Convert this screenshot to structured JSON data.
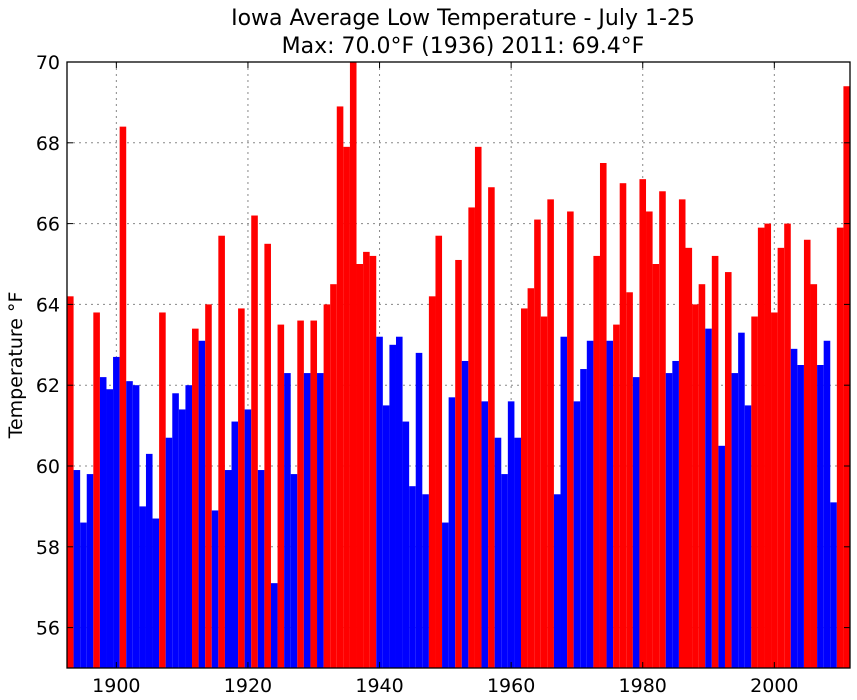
{
  "chart_data": {
    "type": "bar",
    "title": "Iowa Average Low Temperature - July 1-25",
    "subtitle": "Max: 70.0°F (1936) 2011: 69.4°F",
    "xlabel": "",
    "ylabel": "Temperature °F",
    "xlim": [
      1892.5,
      2011.5
    ],
    "ylim": [
      55,
      70
    ],
    "x_ticks": [
      "1900",
      "1920",
      "1940",
      "1960",
      "1980",
      "2000"
    ],
    "y_ticks": [
      "56",
      "58",
      "60",
      "62",
      "64",
      "66",
      "68",
      "70"
    ],
    "grid": true,
    "colors": {
      "above_average": "#ff0000",
      "below_average": "#0000ff",
      "grid": "#888888"
    },
    "x": [
      1893,
      1894,
      1895,
      1896,
      1897,
      1898,
      1899,
      1900,
      1901,
      1902,
      1903,
      1904,
      1905,
      1906,
      1907,
      1908,
      1909,
      1910,
      1911,
      1912,
      1913,
      1914,
      1915,
      1916,
      1917,
      1918,
      1919,
      1920,
      1921,
      1922,
      1923,
      1924,
      1925,
      1926,
      1927,
      1928,
      1929,
      1930,
      1931,
      1932,
      1933,
      1934,
      1935,
      1936,
      1937,
      1938,
      1939,
      1940,
      1941,
      1942,
      1943,
      1944,
      1945,
      1946,
      1947,
      1948,
      1949,
      1950,
      1951,
      1952,
      1953,
      1954,
      1955,
      1956,
      1957,
      1958,
      1959,
      1960,
      1961,
      1962,
      1963,
      1964,
      1965,
      1966,
      1967,
      1968,
      1969,
      1970,
      1971,
      1972,
      1973,
      1974,
      1975,
      1976,
      1977,
      1978,
      1979,
      1980,
      1981,
      1982,
      1983,
      1984,
      1985,
      1986,
      1987,
      1988,
      1989,
      1990,
      1991,
      1992,
      1993,
      1994,
      1995,
      1996,
      1997,
      1998,
      1999,
      2000,
      2001,
      2002,
      2003,
      2004,
      2005,
      2006,
      2007,
      2008,
      2009,
      2010,
      2011
    ],
    "values": [
      64.2,
      59.9,
      58.6,
      59.8,
      63.8,
      62.2,
      61.9,
      62.7,
      68.4,
      62.1,
      62.0,
      59.0,
      60.3,
      58.7,
      63.8,
      60.7,
      61.8,
      61.4,
      62.0,
      63.4,
      63.1,
      64.0,
      58.9,
      65.7,
      59.9,
      61.1,
      63.9,
      61.4,
      66.2,
      59.9,
      65.5,
      57.1,
      63.5,
      62.3,
      59.8,
      63.6,
      62.3,
      63.6,
      62.3,
      64.0,
      64.5,
      68.9,
      67.9,
      70.0,
      65.0,
      65.3,
      65.2,
      63.2,
      61.5,
      63.0,
      63.2,
      61.1,
      59.5,
      62.8,
      59.3,
      64.2,
      65.7,
      58.6,
      61.7,
      65.1,
      62.6,
      66.4,
      67.9,
      61.6,
      66.9,
      60.7,
      59.8,
      61.6,
      60.7,
      63.9,
      64.4,
      66.1,
      63.7,
      66.6,
      59.3,
      63.2,
      66.3,
      61.6,
      62.4,
      63.1,
      65.2,
      67.5,
      63.1,
      63.5,
      67.0,
      64.3,
      62.2,
      67.1,
      66.3,
      65.0,
      66.8,
      62.3,
      62.6,
      66.6,
      65.4,
      64.0,
      64.5,
      63.4,
      65.2,
      60.5,
      64.8,
      62.3,
      63.3,
      61.5,
      63.7,
      65.9,
      66.0,
      63.8,
      65.4,
      66.0,
      62.9,
      62.5,
      65.6,
      64.5,
      62.5,
      63.1,
      59.1,
      65.9,
      69.4
    ],
    "above": [
      1,
      0,
      0,
      0,
      1,
      0,
      0,
      0,
      1,
      0,
      0,
      0,
      0,
      0,
      1,
      0,
      0,
      0,
      0,
      1,
      0,
      1,
      0,
      1,
      0,
      0,
      1,
      0,
      1,
      0,
      1,
      0,
      1,
      0,
      0,
      1,
      0,
      1,
      0,
      1,
      1,
      1,
      1,
      1,
      1,
      1,
      1,
      0,
      0,
      0,
      0,
      0,
      0,
      0,
      0,
      1,
      1,
      0,
      0,
      1,
      0,
      1,
      1,
      0,
      1,
      0,
      0,
      0,
      0,
      1,
      1,
      1,
      1,
      1,
      0,
      0,
      1,
      0,
      0,
      0,
      1,
      1,
      0,
      1,
      1,
      1,
      0,
      1,
      1,
      1,
      1,
      0,
      0,
      1,
      1,
      1,
      1,
      0,
      1,
      0,
      1,
      0,
      0,
      0,
      1,
      1,
      1,
      1,
      1,
      1,
      0,
      0,
      1,
      1,
      0,
      0,
      0,
      1,
      1
    ]
  }
}
